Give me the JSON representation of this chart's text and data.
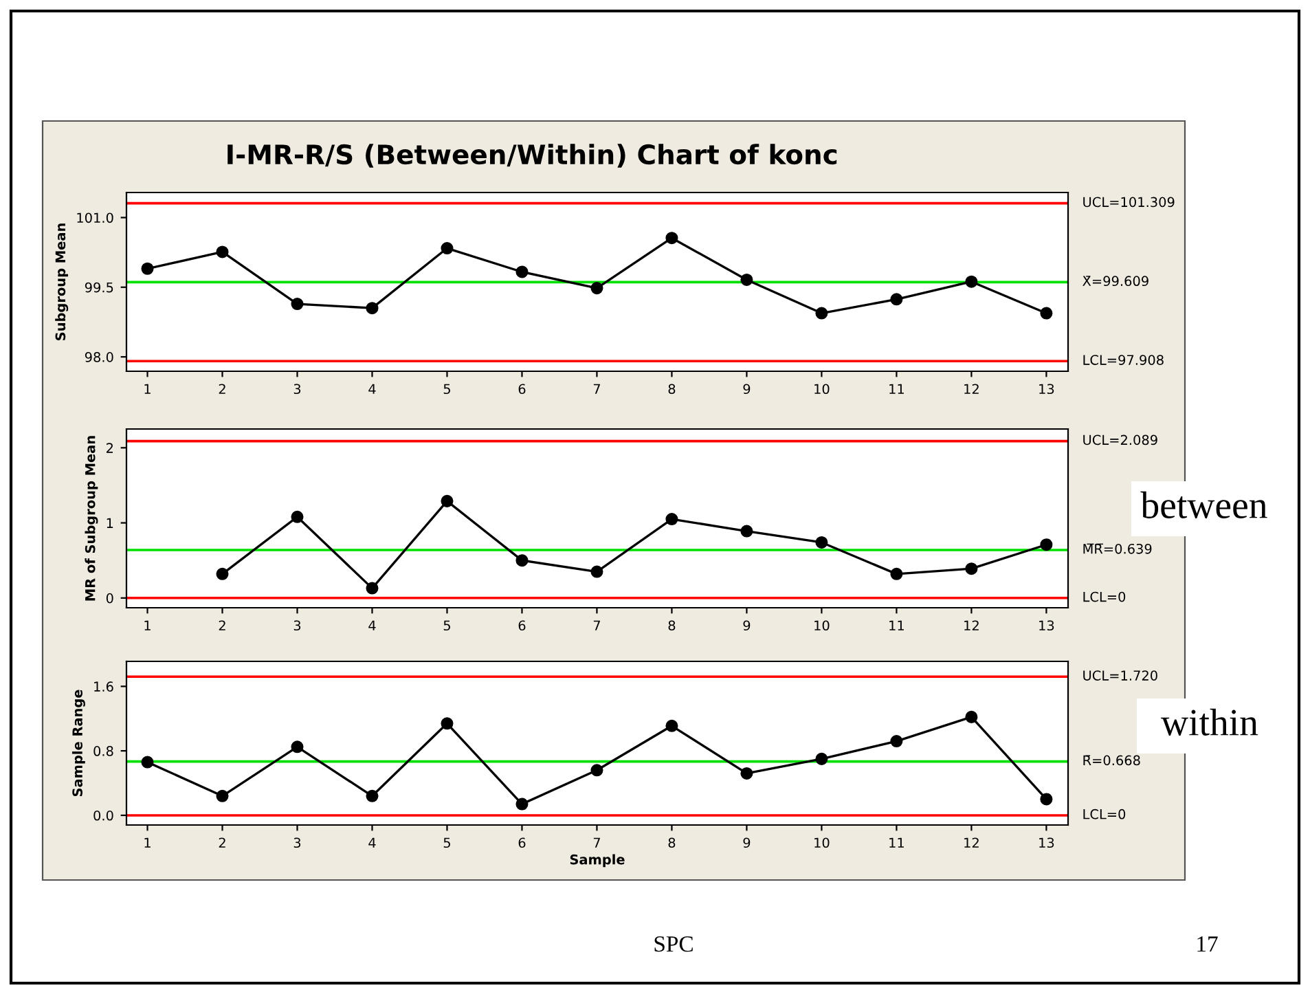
{
  "chart_data": [
    {
      "type": "line",
      "title": "I-MR-R/S (Between/Within) Chart of konc",
      "ylabel": "Subgroup Mean",
      "x": [
        1,
        2,
        3,
        4,
        5,
        6,
        7,
        8,
        9,
        10,
        11,
        12,
        13
      ],
      "series": [
        {
          "color": "#000000",
          "values": [
            99.9,
            100.26,
            99.14,
            99.05,
            100.34,
            99.83,
            99.48,
            100.56,
            99.66,
            98.94,
            99.24,
            99.62,
            98.94
          ]
        }
      ],
      "xlim": [
        0.72,
        13.29
      ],
      "xticks": [
        1,
        2,
        3,
        4,
        5,
        6,
        7,
        8,
        9,
        10,
        11,
        12,
        13
      ],
      "ylim": [
        97.69,
        101.54
      ],
      "yticks": [
        {
          "value": 98.0,
          "label": "98.0"
        },
        {
          "value": 99.5,
          "label": "99.5"
        },
        {
          "value": 101.0,
          "label": "101.0"
        }
      ],
      "ref_lines": [
        {
          "axis": "y",
          "value": 101.309,
          "label": "UCL=101.309",
          "color": "#ff0000"
        },
        {
          "axis": "y",
          "value": 99.609,
          "label": "X̄=99.609",
          "color": "#00e000"
        },
        {
          "axis": "y",
          "value": 97.908,
          "label": "LCL=97.908",
          "color": "#ff0000"
        }
      ],
      "marker": "circle",
      "line_style": "solid",
      "grid": false,
      "legend": false
    },
    {
      "type": "line",
      "ylabel": "MR of Subgroup Mean",
      "series": [
        {
          "color": "#000000",
          "x": [
            2,
            3,
            4,
            5,
            6,
            7,
            8,
            9,
            10,
            11,
            12,
            13
          ],
          "values": [
            0.32,
            1.08,
            0.13,
            1.29,
            0.5,
            0.35,
            1.05,
            0.89,
            0.74,
            0.32,
            0.39,
            0.71
          ]
        }
      ],
      "xlim": [
        0.72,
        13.29
      ],
      "xticks": [
        1,
        2,
        3,
        4,
        5,
        6,
        7,
        8,
        9,
        10,
        11,
        12,
        13
      ],
      "ylim": [
        -0.13,
        2.25
      ],
      "yticks": [
        0,
        1,
        2
      ],
      "ref_lines": [
        {
          "axis": "y",
          "value": 2.089,
          "label": "UCL=2.089",
          "color": "#ff0000"
        },
        {
          "axis": "y",
          "value": 0.639,
          "label": "M̅R̅=0.639",
          "color": "#00e000"
        },
        {
          "axis": "y",
          "value": 0,
          "label": "LCL=0",
          "color": "#ff0000"
        }
      ],
      "annotations": [
        "between"
      ],
      "marker": "circle",
      "line_style": "solid",
      "grid": false,
      "legend": false
    },
    {
      "type": "line",
      "ylabel": "Sample Range",
      "xlabel": "Sample",
      "x": [
        1,
        2,
        3,
        4,
        5,
        6,
        7,
        8,
        9,
        10,
        11,
        12,
        13
      ],
      "series": [
        {
          "color": "#000000",
          "values": [
            0.66,
            0.24,
            0.85,
            0.24,
            1.14,
            0.14,
            0.56,
            1.11,
            0.52,
            0.7,
            0.92,
            1.22,
            0.2
          ]
        }
      ],
      "xlim": [
        0.72,
        13.29
      ],
      "xticks": [
        1,
        2,
        3,
        4,
        5,
        6,
        7,
        8,
        9,
        10,
        11,
        12,
        13
      ],
      "ylim": [
        -0.12,
        1.91
      ],
      "yticks": [
        {
          "value": 0.0,
          "label": "0.0"
        },
        {
          "value": 0.8,
          "label": "0.8"
        },
        {
          "value": 1.6,
          "label": "1.6"
        }
      ],
      "ref_lines": [
        {
          "axis": "y",
          "value": 1.72,
          "label": "UCL=1.720",
          "color": "#ff0000"
        },
        {
          "axis": "y",
          "value": 0.668,
          "label": "R̄=0.668",
          "color": "#00e000"
        },
        {
          "axis": "y",
          "value": 0,
          "label": "LCL=0",
          "color": "#ff0000"
        }
      ],
      "annotations": [
        "within",
        "SPC",
        "17"
      ],
      "marker": "circle",
      "line_style": "solid",
      "grid": false,
      "legend": false
    }
  ]
}
